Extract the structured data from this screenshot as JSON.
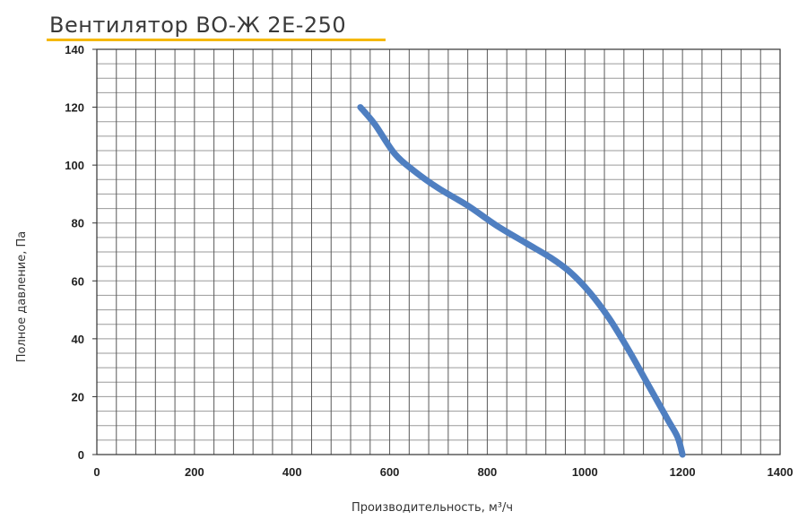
{
  "title": "Вентилятор ВО-Ж 2Е-250",
  "colors": {
    "accent": "#f5b800",
    "curve": "#4f7fc1",
    "grid": "#555555"
  },
  "chart_data": {
    "type": "line",
    "title": "Вентилятор ВО-Ж 2Е-250",
    "xlabel": "Производительность, м³/ч",
    "ylabel": "Полное давление, Па",
    "xlim": [
      0,
      1400
    ],
    "ylim": [
      0,
      140
    ],
    "x_ticks": [
      0,
      200,
      400,
      600,
      800,
      1000,
      1200,
      1400
    ],
    "y_ticks": [
      0,
      20,
      40,
      60,
      80,
      100,
      120,
      140
    ],
    "grid": true,
    "legend": "none",
    "series": [
      {
        "x": [
          540,
          570,
          610,
          650,
          700,
          760,
          820,
          880,
          930,
          970,
          1010,
          1050,
          1090,
          1130,
          1170,
          1190,
          1200
        ],
        "y": [
          120,
          114,
          104,
          98,
          92,
          86,
          79,
          73,
          68,
          63,
          56,
          47,
          36,
          24,
          12,
          6,
          0
        ]
      }
    ]
  }
}
